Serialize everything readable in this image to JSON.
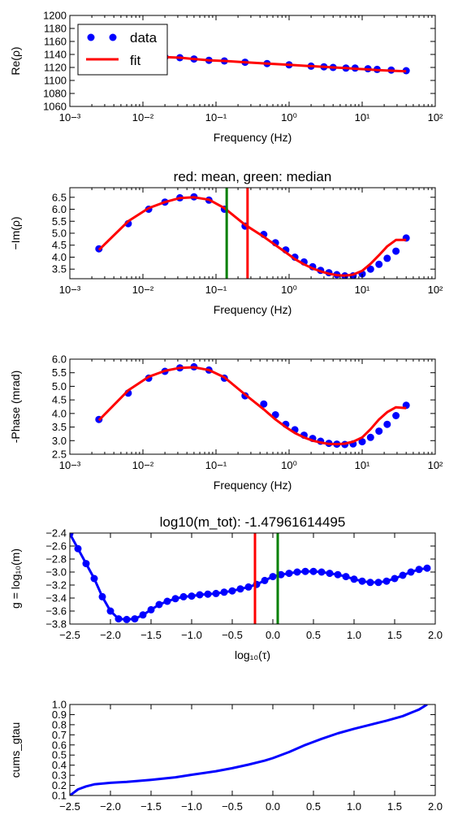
{
  "colors": {
    "data": "#0000ff",
    "fit": "#ff0000",
    "median": "#008000",
    "axis": "#000000"
  },
  "legend": {
    "data_label": "data",
    "fit_label": "fit",
    "placement": "upper-left"
  },
  "chart_data": [
    {
      "type": "scatter",
      "x_scale": "log",
      "xlim": [
        0.001,
        100
      ],
      "ylim": [
        1060,
        1200
      ],
      "xlabel": "Frequency (Hz)",
      "ylabel": "Re(ρ)",
      "title": "",
      "xticks": [
        0.001,
        0.01,
        0.1,
        1,
        10,
        100
      ],
      "yticks": [
        1060,
        1080,
        1100,
        1120,
        1140,
        1160,
        1180,
        1200
      ],
      "series": [
        {
          "name": "data",
          "style": "markers",
          "x": [
            0.0025,
            0.0063,
            0.012,
            0.02,
            0.032,
            0.05,
            0.08,
            0.13,
            0.25,
            0.5,
            1,
            2,
            3,
            4,
            6,
            8,
            12,
            16,
            25,
            40
          ],
          "y": [
            1141,
            1139,
            1137,
            1136,
            1135,
            1133,
            1131,
            1130,
            1128,
            1126,
            1124,
            1122,
            1121,
            1120,
            1119,
            1119,
            1118,
            1117,
            1116,
            1115
          ]
        },
        {
          "name": "fit",
          "style": "line",
          "x": [
            0.0025,
            0.0063,
            0.012,
            0.02,
            0.032,
            0.05,
            0.08,
            0.13,
            0.25,
            0.5,
            1,
            2,
            3,
            4,
            6,
            8,
            12,
            16,
            25,
            40
          ],
          "y": [
            1141,
            1139,
            1137,
            1136,
            1135,
            1133,
            1131,
            1130,
            1128,
            1126,
            1124,
            1122,
            1121,
            1120,
            1119,
            1118,
            1117,
            1116,
            1115,
            1114
          ]
        }
      ]
    },
    {
      "type": "scatter",
      "x_scale": "log",
      "xlim": [
        0.001,
        100
      ],
      "ylim": [
        3.1,
        6.9
      ],
      "xlabel": "Frequency (Hz)",
      "ylabel": "−Im(ρ)",
      "title": "red: mean, green: median",
      "xticks": [
        0.001,
        0.01,
        0.1,
        1,
        10,
        100
      ],
      "yticks": [
        3.5,
        4.0,
        4.5,
        5.0,
        5.5,
        6.0,
        6.5
      ],
      "vlines": [
        {
          "x": 0.14,
          "color": "green"
        },
        {
          "x": 0.27,
          "color": "red"
        }
      ],
      "series": [
        {
          "name": "data",
          "style": "markers",
          "x": [
            0.0025,
            0.0063,
            0.012,
            0.02,
            0.032,
            0.05,
            0.08,
            0.13,
            0.25,
            0.45,
            0.65,
            0.9,
            1.2,
            1.6,
            2.1,
            2.7,
            3.5,
            4.5,
            5.8,
            7.5,
            10,
            13,
            17,
            22,
            29,
            40
          ],
          "y": [
            4.35,
            5.4,
            6.0,
            6.3,
            6.48,
            6.52,
            6.38,
            6.0,
            5.3,
            4.95,
            4.6,
            4.3,
            4.0,
            3.8,
            3.6,
            3.45,
            3.35,
            3.27,
            3.22,
            3.22,
            3.3,
            3.5,
            3.7,
            3.95,
            4.25,
            4.8
          ]
        },
        {
          "name": "fit",
          "style": "line",
          "x": [
            0.0025,
            0.0063,
            0.012,
            0.02,
            0.032,
            0.05,
            0.08,
            0.13,
            0.25,
            0.45,
            0.65,
            0.9,
            1.2,
            1.6,
            2.1,
            2.7,
            3.5,
            4.5,
            5.8,
            7.5,
            10,
            13,
            17,
            22,
            29,
            40
          ],
          "y": [
            4.3,
            5.5,
            6.05,
            6.3,
            6.47,
            6.5,
            6.4,
            6.05,
            5.35,
            4.85,
            4.5,
            4.2,
            3.92,
            3.7,
            3.53,
            3.41,
            3.31,
            3.25,
            3.23,
            3.27,
            3.43,
            3.72,
            4.08,
            4.45,
            4.72,
            4.72
          ]
        }
      ]
    },
    {
      "type": "scatter",
      "x_scale": "log",
      "xlim": [
        0.001,
        100
      ],
      "ylim": [
        2.5,
        6.0
      ],
      "xlabel": "Frequency (Hz)",
      "ylabel": "-Phase (mrad)",
      "title": "",
      "xticks": [
        0.001,
        0.01,
        0.1,
        1,
        10,
        100
      ],
      "yticks": [
        2.5,
        3.0,
        3.5,
        4.0,
        4.5,
        5.0,
        5.5,
        6.0
      ],
      "series": [
        {
          "name": "data",
          "style": "markers",
          "x": [
            0.0025,
            0.0063,
            0.012,
            0.02,
            0.032,
            0.05,
            0.08,
            0.13,
            0.25,
            0.45,
            0.65,
            0.9,
            1.2,
            1.6,
            2.1,
            2.7,
            3.5,
            4.5,
            5.8,
            7.5,
            10,
            13,
            17,
            22,
            29,
            40
          ],
          "y": [
            3.78,
            4.75,
            5.3,
            5.55,
            5.68,
            5.72,
            5.6,
            5.3,
            4.65,
            4.35,
            3.95,
            3.6,
            3.4,
            3.2,
            3.08,
            2.98,
            2.9,
            2.87,
            2.86,
            2.88,
            2.96,
            3.12,
            3.35,
            3.6,
            3.92,
            4.3
          ]
        },
        {
          "name": "fit",
          "style": "line",
          "x": [
            0.0025,
            0.0063,
            0.012,
            0.02,
            0.032,
            0.05,
            0.08,
            0.13,
            0.25,
            0.45,
            0.65,
            0.9,
            1.2,
            1.6,
            2.1,
            2.7,
            3.5,
            4.5,
            5.8,
            7.5,
            10,
            13,
            17,
            22,
            29,
            40
          ],
          "y": [
            3.75,
            4.85,
            5.35,
            5.57,
            5.68,
            5.7,
            5.6,
            5.33,
            4.7,
            4.15,
            3.78,
            3.5,
            3.28,
            3.12,
            3.0,
            2.93,
            2.88,
            2.87,
            2.89,
            2.96,
            3.12,
            3.42,
            3.78,
            4.05,
            4.23,
            4.2
          ]
        }
      ]
    },
    {
      "type": "line",
      "x_scale": "linear",
      "xlim": [
        -2.5,
        2.0
      ],
      "ylim": [
        -3.8,
        -2.4
      ],
      "xlabel": "log₁₀(τ)",
      "ylabel": "g = log₁₀(m)",
      "title": "log10(m_tot): -1.47961614495",
      "xticks": [
        -2.5,
        -2.0,
        -1.5,
        -1.0,
        -0.5,
        0.0,
        0.5,
        1.0,
        1.5,
        2.0
      ],
      "yticks": [
        -3.8,
        -3.6,
        -3.4,
        -3.2,
        -3.0,
        -2.8,
        -2.6,
        -2.4
      ],
      "vlines": [
        {
          "x": -0.22,
          "color": "red"
        },
        {
          "x": 0.06,
          "color": "green"
        }
      ],
      "series": [
        {
          "name": "g",
          "style": "line+markers",
          "x": [
            -2.5,
            -2.4,
            -2.3,
            -2.2,
            -2.1,
            -2.0,
            -1.9,
            -1.8,
            -1.7,
            -1.6,
            -1.5,
            -1.4,
            -1.3,
            -1.2,
            -1.1,
            -1.0,
            -0.9,
            -0.8,
            -0.7,
            -0.6,
            -0.5,
            -0.4,
            -0.3,
            -0.2,
            -0.1,
            0.0,
            0.1,
            0.2,
            0.3,
            0.4,
            0.5,
            0.6,
            0.7,
            0.8,
            0.9,
            1.0,
            1.1,
            1.2,
            1.3,
            1.4,
            1.5,
            1.6,
            1.7,
            1.8,
            1.9
          ],
          "y": [
            -2.41,
            -2.64,
            -2.87,
            -3.1,
            -3.38,
            -3.6,
            -3.72,
            -3.73,
            -3.72,
            -3.66,
            -3.58,
            -3.5,
            -3.45,
            -3.41,
            -3.38,
            -3.37,
            -3.35,
            -3.34,
            -3.33,
            -3.31,
            -3.29,
            -3.26,
            -3.23,
            -3.19,
            -3.13,
            -3.07,
            -3.04,
            -3.02,
            -3.0,
            -2.99,
            -2.99,
            -3.0,
            -3.02,
            -3.04,
            -3.07,
            -3.11,
            -3.14,
            -3.16,
            -3.16,
            -3.14,
            -3.1,
            -3.05,
            -3.0,
            -2.96,
            -2.94
          ]
        }
      ]
    },
    {
      "type": "line",
      "x_scale": "linear",
      "xlim": [
        -2.5,
        2.0
      ],
      "ylim": [
        0.1,
        1.0
      ],
      "xlabel": "",
      "ylabel": "cums_gtau",
      "title": "",
      "xticks": [
        -2.5,
        -2.0,
        -1.5,
        -1.0,
        -0.5,
        0.0,
        0.5,
        1.0,
        1.5,
        2.0
      ],
      "yticks": [
        0.1,
        0.2,
        0.3,
        0.4,
        0.5,
        0.6,
        0.7,
        0.8,
        0.9,
        1.0
      ],
      "series": [
        {
          "name": "cums_gtau",
          "style": "line",
          "x": [
            -2.5,
            -2.45,
            -2.4,
            -2.3,
            -2.2,
            -2.0,
            -1.8,
            -1.5,
            -1.2,
            -1.0,
            -0.7,
            -0.5,
            -0.3,
            -0.1,
            0.0,
            0.2,
            0.4,
            0.6,
            0.8,
            1.0,
            1.2,
            1.4,
            1.6,
            1.8,
            1.9
          ],
          "y": [
            0.1,
            0.13,
            0.16,
            0.19,
            0.21,
            0.225,
            0.235,
            0.255,
            0.28,
            0.305,
            0.34,
            0.37,
            0.405,
            0.445,
            0.47,
            0.53,
            0.6,
            0.66,
            0.715,
            0.76,
            0.8,
            0.84,
            0.885,
            0.95,
            1.0
          ]
        }
      ]
    }
  ]
}
